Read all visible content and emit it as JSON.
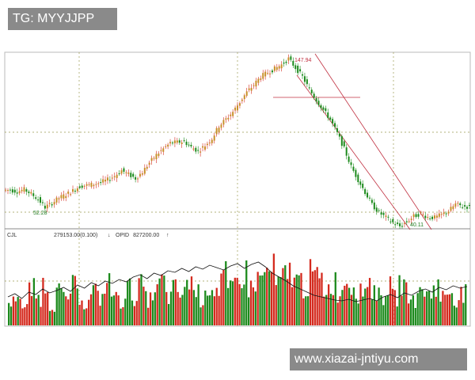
{
  "watermark_top": "TG: MYYJJPP",
  "watermark_bottom": "www.xiazai-jntiyu.com",
  "chart_data": {
    "type": "candlestick",
    "title": "",
    "ylim": [
      38,
      152
    ],
    "grid": true,
    "closes": [
      63.4,
      62.5,
      63.8,
      61.0,
      57.5,
      52.3,
      55.0,
      58.3,
      60.5,
      63.0,
      65.9,
      66.5,
      67.2,
      68.4,
      70.0,
      72.5,
      76.0,
      73.5,
      70.9,
      75.0,
      81.0,
      86.0,
      90.0,
      93.6,
      94.2,
      94.6,
      91.0,
      88.5,
      92.0,
      96.5,
      104.6,
      109.0,
      113.7,
      120.0,
      126.3,
      131.0,
      136.4,
      139.0,
      141.4,
      144.0,
      147.9,
      142.0,
      136.4,
      128.0,
      121.3,
      115.0,
      108.7,
      100.0,
      90.0,
      78.5,
      70.0,
      62.0,
      54.0,
      49.0,
      45.7,
      42.5,
      40.1,
      43.0,
      46.5,
      48.3,
      46.0,
      45.7,
      47.5,
      50.0,
      54.3,
      53.0,
      52.5
    ],
    "annotations": {
      "high": "147.94",
      "low_left": "52.28",
      "low_right": "40.11"
    },
    "colors": {
      "up": "#d42a1e",
      "down": "#1c8a1c",
      "channel": "#c03040",
      "grid": "#9a9a50"
    },
    "volume_panel": {
      "label": "CJL",
      "value_text": "279153.00(0.100)",
      "up_arrow_text": "↓",
      "opid_label": "OPID",
      "opid_value": "827200.00",
      "opid_arrow": "↑",
      "volumes": [
        40,
        55,
        30,
        62,
        48,
        70,
        35,
        58,
        44,
        66,
        52,
        38,
        60,
        47,
        72,
        55,
        41,
        63,
        50,
        68,
        45,
        57,
        75,
        49,
        62,
        53,
        80,
        58,
        46,
        70,
        64,
        85,
        59,
        73,
        90,
        66,
        78,
        88,
        95,
        71,
        83,
        92,
        76,
        68,
        87,
        79,
        63,
        74,
        58,
        82,
        69,
        55,
        77,
        61,
        50,
        66,
        48,
        72,
        57,
        44,
        63,
        52,
        70,
        49,
        59,
        46,
        54
      ],
      "oi_line": [
        30,
        34,
        28,
        36,
        33,
        40,
        35,
        38,
        42,
        37,
        45,
        41,
        48,
        44,
        50,
        47,
        52,
        49,
        55,
        58,
        53,
        60,
        57,
        63,
        61,
        66,
        62,
        68,
        65,
        70,
        67,
        64,
        69,
        72,
        66,
        71,
        74,
        68,
        60,
        55,
        50,
        44,
        40,
        36,
        32,
        30,
        28,
        26,
        25,
        27,
        24,
        26,
        28,
        25,
        30,
        33,
        29,
        35,
        32,
        37,
        40,
        36,
        42,
        39,
        44,
        41,
        43
      ]
    }
  }
}
